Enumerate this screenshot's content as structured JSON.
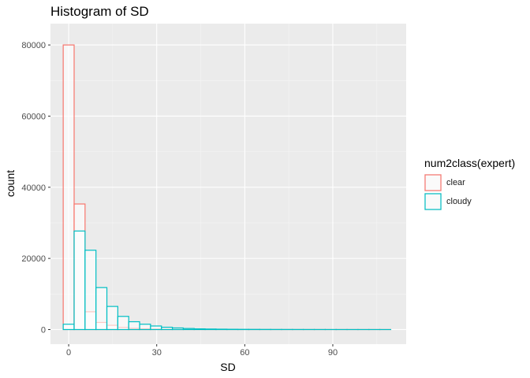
{
  "chart_data": {
    "type": "bar",
    "title": "Histogram of SD",
    "xlabel": "SD",
    "ylabel": "count",
    "xlim": [
      -6.2,
      115
    ],
    "ylim": [
      -4100,
      86000
    ],
    "x_ticks": [
      0,
      30,
      60,
      90
    ],
    "y_ticks": [
      0,
      20000,
      40000,
      60000,
      80000
    ],
    "bin_width": 3.72,
    "bin_centers": [
      0,
      3.72,
      7.44,
      11.16,
      14.88,
      18.6,
      22.32,
      26.04,
      29.76,
      33.48,
      37.2,
      40.92,
      44.64,
      48.36,
      52.08,
      55.8,
      59.52,
      63.24,
      66.96,
      70.68,
      74.4,
      78.12,
      81.84,
      85.56,
      89.28,
      93,
      96.72,
      100.44,
      104.16,
      107.88
    ],
    "grid": true,
    "legend": {
      "title": "num2class(expert)",
      "position": "right"
    },
    "series": [
      {
        "name": "clear",
        "color": "#F8766D",
        "values": [
          80000,
          35300,
          5000,
          2000,
          1200,
          600,
          350,
          200,
          120,
          80,
          50,
          40,
          30,
          20,
          15,
          10,
          8,
          6,
          5,
          4,
          3,
          3,
          2,
          2,
          1,
          1,
          1,
          1,
          1,
          1
        ]
      },
      {
        "name": "cloudy",
        "color": "#00BFC4",
        "values": [
          1500,
          27700,
          22300,
          11800,
          6500,
          3700,
          2200,
          1500,
          1000,
          650,
          450,
          300,
          200,
          150,
          110,
          80,
          60,
          50,
          40,
          30,
          25,
          20,
          15,
          12,
          10,
          8,
          6,
          5,
          4,
          3
        ]
      }
    ]
  }
}
